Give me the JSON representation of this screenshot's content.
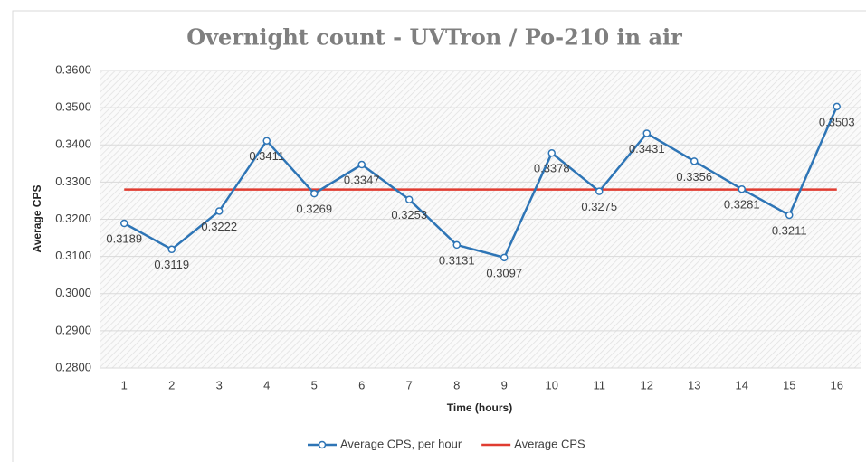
{
  "chart_data": {
    "type": "line",
    "title": "Overnight count - UVTron / Po-210 in air",
    "x_label": "Time (hours)",
    "y_label": "Average CPS",
    "categories": [
      "1",
      "2",
      "3",
      "4",
      "5",
      "6",
      "7",
      "8",
      "9",
      "10",
      "11",
      "12",
      "13",
      "14",
      "15",
      "16"
    ],
    "series": [
      {
        "name": "Average CPS, per hour",
        "color": "#2e75b6",
        "values": [
          0.3189,
          0.3119,
          0.3222,
          0.3411,
          0.3269,
          0.3347,
          0.3253,
          0.3131,
          0.3097,
          0.3378,
          0.3275,
          0.3431,
          0.3356,
          0.3281,
          0.3211,
          0.3503
        ],
        "markers": true,
        "data_labels": true
      },
      {
        "name": "Average CPS",
        "color": "#e03c31",
        "values": [
          0.328,
          0.328,
          0.328,
          0.328,
          0.328,
          0.328,
          0.328,
          0.328,
          0.328,
          0.328,
          0.328,
          0.328,
          0.328,
          0.328,
          0.328,
          0.328
        ],
        "markers": false,
        "data_labels": false
      }
    ],
    "ylim": [
      0.28,
      0.36
    ],
    "yticks": [
      {
        "value": 0.28,
        "label": "0.2800"
      },
      {
        "value": 0.29,
        "label": "0.2900"
      },
      {
        "value": 0.3,
        "label": "0.3000"
      },
      {
        "value": 0.31,
        "label": "0.3100"
      },
      {
        "value": 0.32,
        "label": "0.3200"
      },
      {
        "value": 0.33,
        "label": "0.3300"
      },
      {
        "value": 0.34,
        "label": "0.3400"
      },
      {
        "value": 0.35,
        "label": "0.3500"
      },
      {
        "value": 0.36,
        "label": "0.3600"
      }
    ],
    "grid": true,
    "legend": "bottom"
  }
}
